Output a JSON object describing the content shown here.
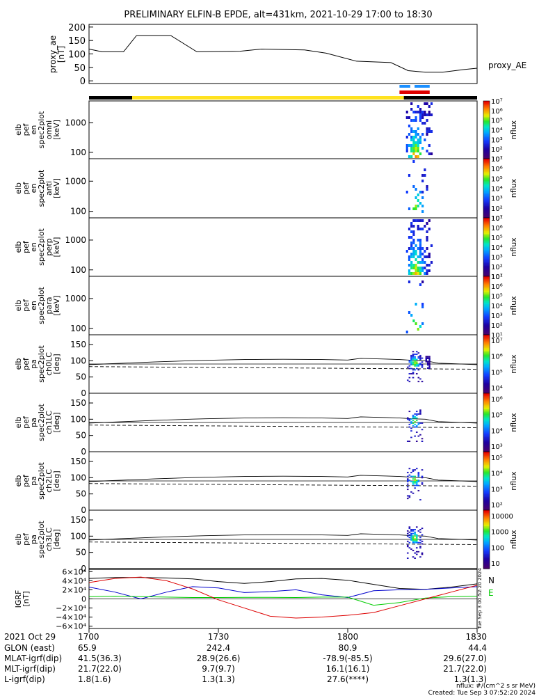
{
  "title": "PRELIMINARY ELFIN-B EPDE, alt=431km, 2021-10-29 17:00 to 18:30",
  "chart_data": [
    {
      "type": "line",
      "panel": "proxy_ae",
      "ylabel": [
        "proxy_ae",
        "[nT]"
      ],
      "legend": "proxy_AE",
      "ylim": [
        -10,
        210
      ],
      "yticks": [
        "200",
        "150",
        "100",
        "50",
        "0"
      ],
      "ytick_values": [
        200,
        150,
        100,
        50,
        0
      ],
      "x_minutes": [
        0,
        3,
        8,
        11,
        19,
        25,
        35,
        40,
        50,
        55,
        62,
        70,
        74,
        78,
        82,
        87,
        90
      ],
      "values": [
        118,
        108,
        108,
        168,
        168,
        108,
        110,
        118,
        115,
        103,
        73,
        68,
        38,
        32,
        32,
        42,
        47
      ]
    },
    {
      "type": "heatmap",
      "panel": "omni",
      "ylabel": [
        "elb",
        "pef",
        "en",
        "spec2plot",
        "omni",
        "[keV]"
      ],
      "yticks": [
        "1000",
        "100"
      ],
      "cbar_ticks": [
        "10¹",
        "10²",
        "10³",
        "10⁴",
        "10⁵",
        "10⁶",
        "10⁷"
      ],
      "cbar_label": "nflux"
    },
    {
      "type": "heatmap",
      "panel": "anti",
      "ylabel": [
        "elb",
        "pef",
        "en",
        "spec2plot",
        "anti",
        "[keV]"
      ],
      "yticks": [
        "1000",
        "100"
      ],
      "cbar_ticks": [
        "10¹",
        "10²",
        "10³",
        "10⁴",
        "10⁵",
        "10⁶",
        "10⁷"
      ],
      "cbar_label": "nflux"
    },
    {
      "type": "heatmap",
      "panel": "perp",
      "ylabel": [
        "elb",
        "pef",
        "en",
        "spec2plot",
        "perp",
        "[keV]"
      ],
      "yticks": [
        "1000",
        "100"
      ],
      "cbar_ticks": [
        "10¹",
        "10²",
        "10³",
        "10⁴",
        "10⁵",
        "10⁶",
        "10⁷"
      ],
      "cbar_label": "nflux"
    },
    {
      "type": "heatmap",
      "panel": "para",
      "ylabel": [
        "elb",
        "pef",
        "en",
        "spec2plot",
        "para",
        "[keV]"
      ],
      "yticks": [
        "1000",
        "100"
      ],
      "cbar_ticks": [
        "10¹",
        "10²",
        "10³",
        "10⁴",
        "10⁵",
        "10⁶",
        "10⁷"
      ],
      "cbar_label": "nflux"
    },
    {
      "type": "heatmap",
      "panel": "ch0LC",
      "ylabel": [
        "elb",
        "pef",
        "pa",
        "spec2plot",
        "ch0LC",
        "[deg]"
      ],
      "yticks": [
        "150",
        "100",
        "50",
        "0"
      ],
      "cbar_ticks": [
        "10⁷",
        "10⁶",
        "10⁵",
        "10⁴"
      ],
      "cbar_label": "nflux"
    },
    {
      "type": "heatmap",
      "panel": "ch1LC",
      "ylabel": [
        "elb",
        "pef",
        "pa",
        "spec2plot",
        "ch1LC",
        "[deg]"
      ],
      "yticks": [
        "150",
        "100",
        "50",
        "0"
      ],
      "cbar_ticks": [
        "10⁶",
        "10⁵",
        "10⁴",
        "10³"
      ],
      "cbar_label": "nflux"
    },
    {
      "type": "heatmap",
      "panel": "ch2LC",
      "ylabel": [
        "elb",
        "pef",
        "pa",
        "spec2plot",
        "ch2LC",
        "[deg]"
      ],
      "yticks": [
        "150",
        "100",
        "50",
        "0"
      ],
      "cbar_ticks": [
        "10⁵",
        "10⁴",
        "10³",
        "10²"
      ],
      "cbar_label": "nflux"
    },
    {
      "type": "heatmap",
      "panel": "ch3LC",
      "ylabel": [
        "elb",
        "pef",
        "pa",
        "spec2plot",
        "ch3LC",
        "[deg]"
      ],
      "yticks": [
        "150",
        "100",
        "50",
        "0"
      ],
      "cbar_ticks": [
        "10000",
        "1000",
        "100",
        "10"
      ],
      "cbar_label": "nflux"
    },
    {
      "type": "line",
      "panel": "igrf",
      "ylabel": [
        "IGRF",
        "[nT]"
      ],
      "yticks": [
        "6×10⁴",
        "4×10⁴",
        "2×10⁴",
        "0",
        "−2×10⁴",
        "−4×10⁴",
        "−6×10⁴"
      ],
      "ytick_values": [
        60000,
        40000,
        20000,
        0,
        -20000,
        -40000,
        -60000
      ],
      "ylim": [
        -65000,
        65000
      ],
      "x_minutes": [
        0,
        6,
        12,
        18,
        24,
        30,
        36,
        42,
        48,
        54,
        60,
        66,
        72,
        78,
        84,
        90
      ],
      "series": [
        {
          "name": "N",
          "color": "#000000",
          "values": [
            45000,
            47000,
            47000,
            46000,
            44000,
            38000,
            34000,
            38000,
            44000,
            45000,
            41000,
            32000,
            23000,
            21000,
            26000,
            33000
          ]
        },
        {
          "name": "",
          "color": "#0000cc",
          "values": [
            26000,
            15000,
            0,
            15000,
            27000,
            24000,
            14000,
            16000,
            20000,
            9000,
            3000,
            18000,
            20000,
            21000,
            24000,
            27000
          ]
        },
        {
          "name": "E",
          "color": "#00cc00",
          "values": [
            5000,
            6000,
            5000,
            4000,
            3000,
            3000,
            3500,
            3500,
            3000,
            4000,
            4000,
            -14000,
            -8000,
            2000,
            5000,
            6000
          ]
        },
        {
          "name": "",
          "color": "#dd0000",
          "values": [
            36000,
            45000,
            48000,
            40000,
            22000,
            -2000,
            -20000,
            -38000,
            -42000,
            -40000,
            -36000,
            -30000,
            -15000,
            0,
            15000,
            30000
          ]
        }
      ]
    }
  ],
  "bars": {
    "black_segments": [
      [
        0,
        10
      ],
      [
        73,
        90
      ]
    ],
    "yellow_segment": [
      10,
      73
    ],
    "red_segment": [
      72,
      79
    ],
    "blue_segments": [
      [
        72,
        74.5
      ],
      [
        75.5,
        79
      ]
    ]
  },
  "orbit_table": {
    "row_labels": [
      "2021 Oct 29",
      "GLON (east)",
      "MLAT-igrf(dip)",
      "MLT-igrf(dip)",
      "L-igrf(dip)"
    ],
    "x_ticks": [
      {
        "minute": 0,
        "label": "1700"
      },
      {
        "minute": 30,
        "label": "1730"
      },
      {
        "minute": 60,
        "label": "1800"
      },
      {
        "minute": 90,
        "label": "1830"
      }
    ],
    "rows": [
      [
        "65.9",
        "242.4",
        "80.9",
        "44.4"
      ],
      [
        "41.5(36.3)",
        "28.9(26.6)",
        "-78.9(-85.5)",
        "29.6(27.0)"
      ],
      [
        "21.7(22.0)",
        "9.7(9.7)",
        "16.1(16.1)",
        "21.7(22.0)"
      ],
      [
        "1.8(1.6)",
        "1.3(1.3)",
        "27.6(****)",
        "1.3(1.3)"
      ]
    ]
  },
  "footer": {
    "units": "nflux: #/(cm^2 s sr MeV)",
    "created": "Created: Tue Sep  3 07:52:20 2024",
    "side_stamp": "Tue Sep  3 00:52:20 2024"
  }
}
